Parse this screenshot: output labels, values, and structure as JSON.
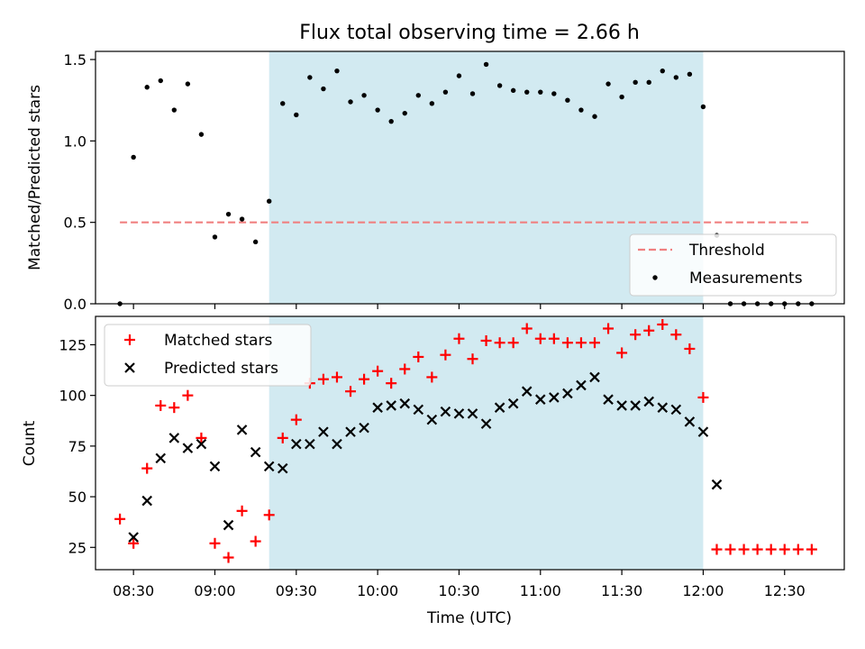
{
  "title": "Flux total observing time = 2.66 h",
  "chart_data": [
    {
      "type": "scatter",
      "ylabel": "Matched/Predicted stars",
      "ylim": [
        0,
        1.55
      ],
      "yticks": [
        0.0,
        0.5,
        1.0,
        1.5
      ],
      "ytick_labels": [
        "0.0",
        "0.5",
        "1.0",
        "1.5"
      ],
      "xlim": [
        "08:16",
        "12:52"
      ],
      "xticks": [
        "08:30",
        "09:00",
        "09:30",
        "10:00",
        "10:30",
        "11:00",
        "11:30",
        "12:00",
        "12:30"
      ],
      "shaded_span": [
        "09:20",
        "12:00"
      ],
      "threshold": {
        "name": "Threshold",
        "value": 0.5,
        "x_range": [
          "08:25",
          "12:40"
        ],
        "color": "#f08080",
        "style": "dashed"
      },
      "legend": {
        "position": "lower-right",
        "entries": [
          "Threshold",
          "Measurements"
        ]
      },
      "series": [
        {
          "name": "Measurements",
          "color": "#000000",
          "marker": "dot",
          "x": [
            "08:25",
            "08:30",
            "08:35",
            "08:40",
            "08:45",
            "08:50",
            "08:55",
            "09:00",
            "09:05",
            "09:10",
            "09:15",
            "09:20",
            "09:25",
            "09:30",
            "09:35",
            "09:40",
            "09:45",
            "09:50",
            "09:55",
            "10:00",
            "10:05",
            "10:10",
            "10:15",
            "10:20",
            "10:25",
            "10:30",
            "10:35",
            "10:40",
            "10:45",
            "10:50",
            "10:55",
            "11:00",
            "11:05",
            "11:10",
            "11:15",
            "11:20",
            "11:25",
            "11:30",
            "11:35",
            "11:40",
            "11:45",
            "11:50",
            "11:55",
            "12:00",
            "12:05",
            "12:10",
            "12:15",
            "12:20",
            "12:25",
            "12:30",
            "12:35",
            "12:40"
          ],
          "y": [
            0.0,
            0.9,
            1.33,
            1.37,
            1.19,
            1.35,
            1.04,
            0.41,
            0.55,
            0.52,
            0.38,
            0.63,
            1.23,
            1.16,
            1.39,
            1.32,
            1.43,
            1.24,
            1.28,
            1.19,
            1.12,
            1.17,
            1.28,
            1.23,
            1.3,
            1.4,
            1.29,
            1.47,
            1.34,
            1.31,
            1.3,
            1.3,
            1.29,
            1.25,
            1.19,
            1.15,
            1.35,
            1.27,
            1.36,
            1.36,
            1.43,
            1.39,
            1.41,
            1.21,
            0.42,
            0.0,
            0.0,
            0.0,
            0.0,
            0.0,
            0.0,
            0.0
          ]
        }
      ]
    },
    {
      "type": "scatter",
      "xlabel": "Time (UTC)",
      "ylabel": "Count",
      "ylim": [
        14,
        139
      ],
      "yticks": [
        25,
        50,
        75,
        100,
        125
      ],
      "ytick_labels": [
        "25",
        "50",
        "75",
        "100",
        "125"
      ],
      "xlim": [
        "08:16",
        "12:52"
      ],
      "xticks": [
        "08:30",
        "09:00",
        "09:30",
        "10:00",
        "10:30",
        "11:00",
        "11:30",
        "12:00",
        "12:30"
      ],
      "xtick_labels": [
        "08:30",
        "09:00",
        "09:30",
        "10:00",
        "10:30",
        "11:00",
        "11:30",
        "12:00",
        "12:30"
      ],
      "shaded_span": [
        "09:20",
        "12:00"
      ],
      "legend": {
        "position": "upper-left",
        "entries": [
          "Matched stars",
          "Predicted stars"
        ]
      },
      "series": [
        {
          "name": "Matched stars",
          "color": "#ff0000",
          "marker": "plus",
          "x": [
            "08:25",
            "08:30",
            "08:35",
            "08:40",
            "08:45",
            "08:50",
            "08:55",
            "09:00",
            "09:05",
            "09:10",
            "09:15",
            "09:20",
            "09:25",
            "09:30",
            "09:35",
            "09:40",
            "09:45",
            "09:50",
            "09:55",
            "10:00",
            "10:05",
            "10:10",
            "10:15",
            "10:20",
            "10:25",
            "10:30",
            "10:35",
            "10:40",
            "10:45",
            "10:50",
            "10:55",
            "11:00",
            "11:05",
            "11:10",
            "11:15",
            "11:20",
            "11:25",
            "11:30",
            "11:35",
            "11:40",
            "11:45",
            "11:50",
            "11:55",
            "12:00",
            "12:05",
            "12:10",
            "12:15",
            "12:20",
            "12:25",
            "12:30",
            "12:35",
            "12:40"
          ],
          "y": [
            39,
            27,
            64,
            95,
            94,
            100,
            79,
            27,
            20,
            43,
            28,
            41,
            79,
            88,
            106,
            108,
            109,
            102,
            108,
            112,
            106,
            113,
            119,
            109,
            120,
            128,
            118,
            127,
            126,
            126,
            133,
            128,
            128,
            126,
            126,
            126,
            133,
            121,
            130,
            132,
            135,
            130,
            123,
            99,
            24,
            24,
            24,
            24,
            24,
            24,
            24,
            24
          ]
        },
        {
          "name": "Predicted stars",
          "color": "#000000",
          "marker": "x",
          "x": [
            "08:30",
            "08:35",
            "08:40",
            "08:45",
            "08:50",
            "08:55",
            "09:00",
            "09:05",
            "09:10",
            "09:15",
            "09:20",
            "09:25",
            "09:30",
            "09:35",
            "09:40",
            "09:45",
            "09:50",
            "09:55",
            "10:00",
            "10:05",
            "10:10",
            "10:15",
            "10:20",
            "10:25",
            "10:30",
            "10:35",
            "10:40",
            "10:45",
            "10:50",
            "10:55",
            "11:00",
            "11:05",
            "11:10",
            "11:15",
            "11:20",
            "11:25",
            "11:30",
            "11:35",
            "11:40",
            "11:45",
            "11:50",
            "11:55",
            "12:00",
            "12:05"
          ],
          "y": [
            30,
            48,
            69,
            79,
            74,
            76,
            65,
            36,
            83,
            72,
            65,
            64,
            76,
            76,
            82,
            76,
            82,
            84,
            94,
            95,
            96,
            93,
            88,
            92,
            91,
            91,
            86,
            94,
            96,
            102,
            98,
            99,
            101,
            105,
            109,
            98,
            95,
            95,
            97,
            94,
            93,
            87,
            82,
            56
          ]
        }
      ]
    }
  ],
  "colors": {
    "shade": "#add8e6",
    "threshold": "#f08080",
    "matched": "#ff0000",
    "predicted": "#000000"
  }
}
